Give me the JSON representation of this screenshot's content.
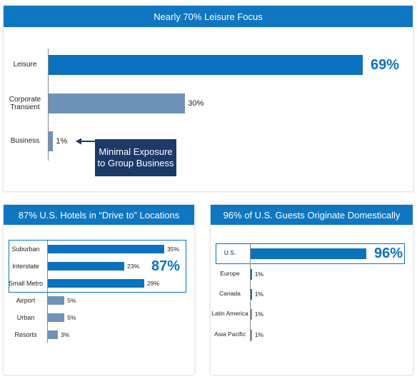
{
  "chart_data": [
    {
      "type": "bar",
      "orientation": "horizontal",
      "title": "Nearly 70% Leisure Focus",
      "categories": [
        "Leisure",
        "Corporate Transient",
        "Business"
      ],
      "values": [
        69,
        30,
        1
      ],
      "value_labels": [
        "69%",
        "30%",
        "1%"
      ],
      "colors": [
        "#0b72c0",
        "#6f93b8",
        "#6f93b8"
      ],
      "annotation": "Minimal Exposure to Group Business"
    },
    {
      "type": "bar",
      "orientation": "horizontal",
      "title": "87% U.S. Hotels in “Drive to” Locations",
      "categories": [
        "Suburban",
        "Interstate",
        "Small Metro",
        "Airport",
        "Urban",
        "Resorts"
      ],
      "values": [
        35,
        23,
        29,
        5,
        5,
        3
      ],
      "value_labels": [
        "35%",
        "23%",
        "29%",
        "5%",
        "5%",
        "3%"
      ],
      "colors": [
        "#0b72c0",
        "#0b72c0",
        "#0b72c0",
        "#6f93b8",
        "#6f93b8",
        "#6f93b8"
      ],
      "highlight": {
        "label": "87%",
        "categories": [
          "Suburban",
          "Interstate",
          "Small Metro"
        ]
      }
    },
    {
      "type": "bar",
      "orientation": "horizontal",
      "title": "96% of U.S. Guests Originate Domestically",
      "categories": [
        "U.S.",
        "Europe",
        "Canada",
        "Latin America",
        "Asia Pacific"
      ],
      "values": [
        96,
        1,
        1,
        1,
        1
      ],
      "value_labels": [
        "96%",
        "1%",
        "1%",
        "1%",
        "1%"
      ],
      "colors": [
        "#0b72c0",
        "#0b72c0",
        "#0b72c0",
        "#6f93b8",
        "#6f93b8"
      ],
      "highlight": {
        "categories": [
          "U.S."
        ]
      }
    }
  ]
}
